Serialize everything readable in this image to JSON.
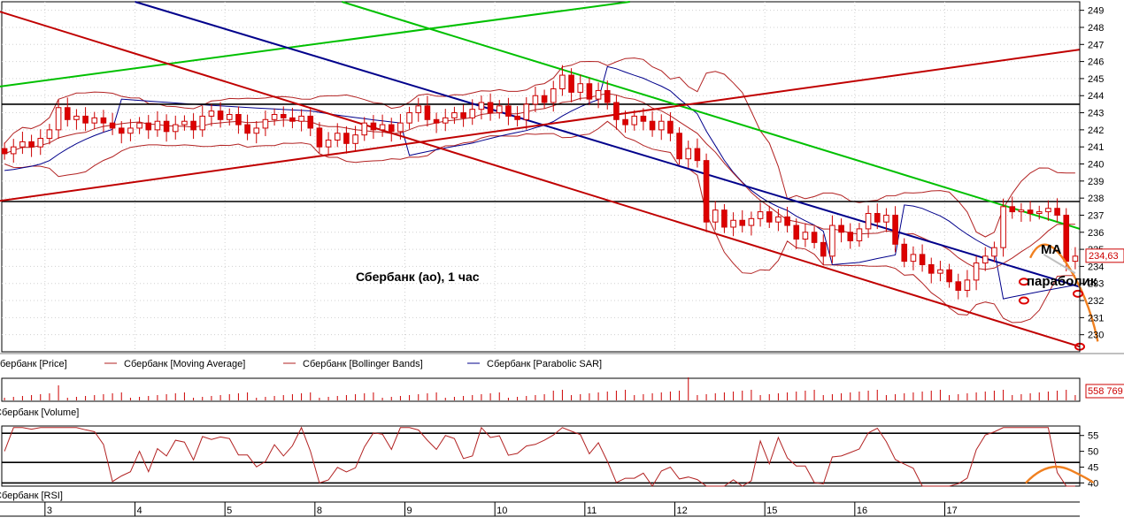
{
  "chart_data": {
    "type": "candlestick",
    "title": "Сбербанк (ао),  1 час",
    "price_axis": {
      "min": 229,
      "max": 249.5,
      "ticks": [
        230,
        231,
        232,
        233,
        234,
        235,
        236,
        237,
        238,
        239,
        240,
        241,
        242,
        243,
        244,
        245,
        246,
        247,
        248,
        249
      ],
      "last_price_label": "234,63"
    },
    "x_axis": {
      "date_labels": [
        {
          "label": "3",
          "x": 5
        },
        {
          "label": "4",
          "x": 15
        },
        {
          "label": "5",
          "x": 25
        },
        {
          "label": "8",
          "x": 35
        },
        {
          "label": "9",
          "x": 45
        },
        {
          "label": "10",
          "x": 55
        },
        {
          "label": "11",
          "x": 65
        },
        {
          "label": "12",
          "x": 75
        },
        {
          "label": "15",
          "x": 85
        },
        {
          "label": "16",
          "x": 95
        },
        {
          "label": "17",
          "x": 105
        }
      ],
      "extent": [
        0,
        120
      ]
    },
    "legend": [
      {
        "name": "Сбербанк [Price]",
        "color": "#cc0000"
      },
      {
        "name": "Сбербанк [Moving Average]",
        "color": "#b22222"
      },
      {
        "name": "Сбербанк [Bollinger Bands]",
        "color": "#b22222"
      },
      {
        "name": "Сбербанк [Parabolic SAR]",
        "color": "#00008b"
      }
    ],
    "candles_close": [
      240.6,
      241.0,
      241.3,
      241.0,
      241.5,
      242.0,
      243.3,
      242.6,
      242.8,
      242.4,
      242.7,
      242.4,
      242.1,
      241.8,
      242.1,
      242.4,
      242.0,
      242.5,
      241.9,
      242.3,
      242.5,
      242.0,
      242.8,
      243.1,
      242.6,
      242.9,
      242.3,
      241.8,
      242.1,
      242.6,
      242.9,
      242.7,
      242.5,
      242.8,
      242.1,
      241.0,
      241.4,
      241.8,
      241.2,
      241.7,
      242.4,
      242.0,
      242.3,
      241.9,
      242.4,
      243.0,
      243.4,
      242.6,
      242.4,
      242.7,
      243.0,
      242.7,
      243.2,
      243.6,
      243.0,
      243.4,
      242.8,
      242.6,
      243.5,
      244.0,
      243.6,
      244.4,
      245.2,
      244.2,
      244.7,
      243.8,
      244.3,
      243.6,
      242.6,
      242.3,
      242.8,
      242.5,
      242.0,
      242.5,
      241.8,
      240.3,
      240.9,
      240.2,
      236.6,
      237.3,
      236.3,
      236.7,
      236.4,
      236.8,
      237.2,
      236.6,
      236.9,
      236.4,
      235.6,
      236.0,
      235.4,
      234.6,
      236.4,
      236.0,
      235.5,
      236.2,
      237.1,
      236.6,
      237.0,
      235.3,
      234.3,
      234.7,
      234.1,
      233.6,
      233.8,
      233.1,
      232.6,
      233.2,
      234.2,
      234.6,
      235.1,
      237.5,
      237.2,
      237.3,
      237.1,
      237.2,
      237.4,
      237.0,
      234.3,
      234.6
    ],
    "horizontal_levels": [
      243.5,
      237.8
    ],
    "trend_lines": [
      {
        "color": "#00c000",
        "points": [
          [
            -0.5,
            244.5
          ],
          [
            70,
            249.5
          ]
        ]
      },
      {
        "color": "#00c000",
        "points": [
          [
            38,
            249.5
          ],
          [
            120,
            236.2
          ]
        ]
      },
      {
        "color": "#00008b",
        "points": [
          [
            15,
            249.5
          ],
          [
            120,
            232.8
          ]
        ]
      },
      {
        "color": "#c00000",
        "points": [
          [
            -0.5,
            249.0
          ],
          [
            120,
            229.3
          ]
        ]
      },
      {
        "color": "#c00000",
        "points": [
          [
            -0.5,
            237.8
          ],
          [
            120,
            246.7
          ]
        ]
      }
    ],
    "annotations": [
      {
        "label": "МА"
      },
      {
        "label": "параболик"
      }
    ],
    "volume": {
      "label_value": "558 769",
      "legend": "Сбербанк [Volume]"
    },
    "rsi": {
      "legend": "Сбербанк [RSI]",
      "ticks": [
        40,
        45,
        50,
        55
      ],
      "levels": [
        40,
        46.5,
        55.7
      ],
      "range": [
        39,
        58
      ]
    }
  }
}
